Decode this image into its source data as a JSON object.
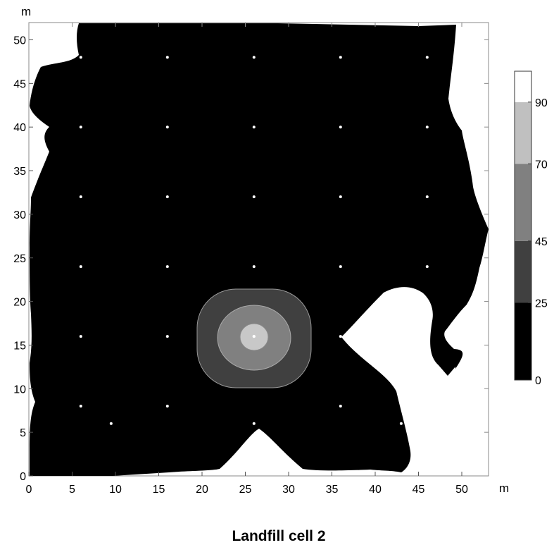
{
  "chart_data": {
    "type": "contour",
    "title": "Landfill cell 2",
    "xlabel": "m",
    "ylabel": "m",
    "xlim": [
      0,
      53
    ],
    "ylim": [
      0,
      52
    ],
    "xticks": [
      0,
      5,
      10,
      15,
      20,
      25,
      30,
      35,
      40,
      45,
      50
    ],
    "yticks": [
      0,
      5,
      10,
      15,
      20,
      25,
      30,
      35,
      40,
      45,
      50
    ],
    "colorbar": {
      "ticks": [
        0,
        25,
        45,
        70,
        90
      ],
      "levels": [
        {
          "from": 0,
          "to": 25,
          "color": "#000000"
        },
        {
          "from": 25,
          "to": 45,
          "color": "#404040"
        },
        {
          "from": 45,
          "to": 70,
          "color": "#808080"
        },
        {
          "from": 70,
          "to": 90,
          "color": "#c0c0c0"
        },
        {
          "from": 90,
          "to": 100,
          "color": "#ffffff"
        }
      ]
    },
    "hotspot": {
      "x": 26,
      "y": 16
    },
    "sample_points": [
      [
        6,
        48
      ],
      [
        16,
        48
      ],
      [
        26,
        48
      ],
      [
        36,
        48
      ],
      [
        46,
        48
      ],
      [
        6,
        40
      ],
      [
        16,
        40
      ],
      [
        26,
        40
      ],
      [
        36,
        40
      ],
      [
        46,
        40
      ],
      [
        6,
        32
      ],
      [
        16,
        32
      ],
      [
        26,
        32
      ],
      [
        36,
        32
      ],
      [
        46,
        32
      ],
      [
        6,
        24
      ],
      [
        16,
        24
      ],
      [
        26,
        24
      ],
      [
        36,
        24
      ],
      [
        46,
        24
      ],
      [
        6,
        16
      ],
      [
        16,
        16
      ],
      [
        26,
        16
      ],
      [
        36,
        16
      ],
      [
        46,
        16
      ],
      [
        6,
        8
      ],
      [
        16,
        8
      ],
      [
        36,
        8
      ],
      [
        9.5,
        6
      ],
      [
        26,
        6
      ],
      [
        43,
        6
      ]
    ]
  }
}
